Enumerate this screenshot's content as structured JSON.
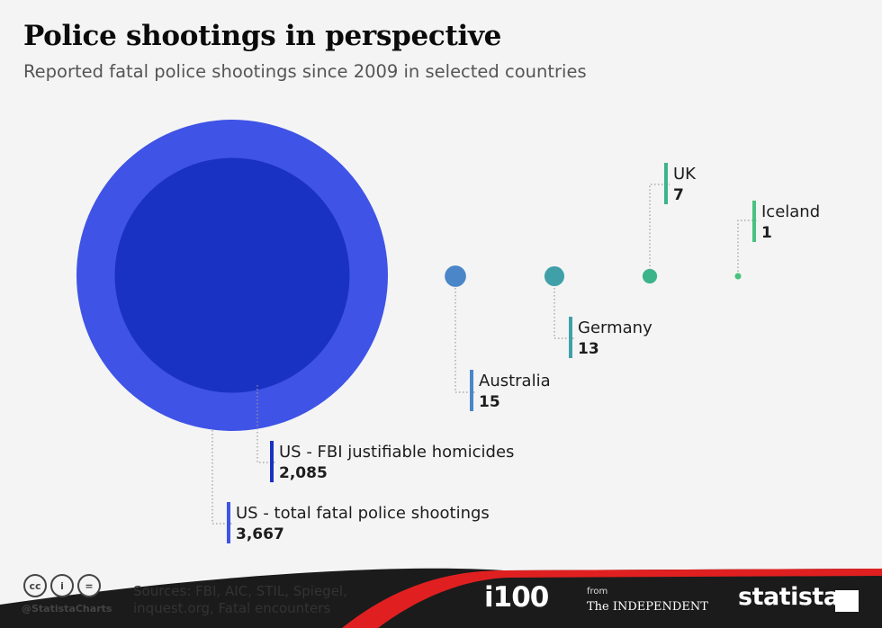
{
  "header": {
    "title": "Police shootings in perspective",
    "subtitle": "Reported fatal police shootings since 2009 in selected countries"
  },
  "chart_data": {
    "type": "bubble",
    "title": "Police shootings in perspective",
    "subtitle": "Reported fatal police shootings since 2009 in selected countries",
    "series": [
      {
        "name": "US - total fatal police shootings",
        "value": 3667,
        "display": "3,667",
        "color": "#3f53e6"
      },
      {
        "name": "US - FBI justifiable homicides",
        "value": 2085,
        "display": "2,085",
        "color": "#1932c4"
      },
      {
        "name": "Australia",
        "value": 15,
        "display": "15",
        "color": "#4a86c8"
      },
      {
        "name": "Germany",
        "value": 13,
        "display": "13",
        "color": "#3fa0a8"
      },
      {
        "name": "UK",
        "value": 7,
        "display": "7",
        "color": "#3bb48a"
      },
      {
        "name": "Iceland",
        "value": 1,
        "display": "1",
        "color": "#48c27e"
      }
    ]
  },
  "footer": {
    "cc_icons": [
      "cc-icon",
      "attribution-icon",
      "no-derivatives-icon"
    ],
    "cc_glyphs": [
      "cc",
      "i",
      "="
    ],
    "handle": "@StatistaCharts",
    "sources_line1": "Sources: FBI, AIC, STIL, Spiegel,",
    "sources_line2": "inquest.org, Fatal encounters",
    "brand_i100": "i100",
    "brand_from": "from",
    "brand_independent": "The INDEPENDENT",
    "brand_statista": "statista",
    "footer_color": "#1b1b1b",
    "accent_color": "#e02020"
  }
}
